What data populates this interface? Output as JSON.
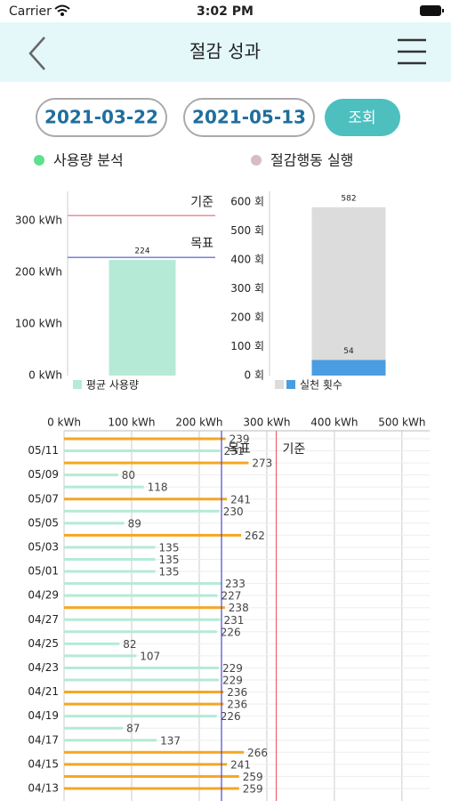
{
  "status_bar": {
    "carrier": "Carrier",
    "time": "3:02 PM"
  },
  "header": {
    "title": "절감 성과"
  },
  "search": {
    "start_date": "2021-03-22",
    "end_date": "2021-05-13",
    "button": "조회"
  },
  "tabs": [
    {
      "label": "사용량 분석",
      "color": "#5fe08f"
    },
    {
      "label": "절감행동 실행",
      "color": "#d6bcc6"
    }
  ],
  "chart_data": [
    {
      "type": "bar",
      "series": [
        {
          "name": "평균 사용량",
          "color": "#b5ead6",
          "values": [
            224
          ]
        }
      ],
      "ylim": [
        0,
        357
      ],
      "yticks": [
        {
          "value": 0,
          "label": "0 kWh"
        },
        {
          "value": 100,
          "label": "100 kWh"
        },
        {
          "value": 200,
          "label": "200 kWh"
        },
        {
          "value": 300,
          "label": "300 kWh"
        }
      ],
      "reference_lines": [
        {
          "label": "기준",
          "value": 310,
          "color": "#f08a9a"
        },
        {
          "label": "목표",
          "value": 229,
          "color": "#7a7fe0"
        }
      ]
    },
    {
      "type": "bar",
      "series": [
        {
          "color": "#dcdcdc",
          "values": [
            582
          ]
        },
        {
          "name": "실천 횟수",
          "color": "#4a9de0",
          "values": [
            54
          ]
        }
      ],
      "ylim": [
        0,
        637
      ],
      "yticks": [
        {
          "value": 0,
          "label": "0 회"
        },
        {
          "value": 100,
          "label": "100 회"
        },
        {
          "value": 200,
          "label": "200 회"
        },
        {
          "value": 300,
          "label": "300 회"
        },
        {
          "value": 400,
          "label": "400 회"
        },
        {
          "value": 500,
          "label": "500 회"
        },
        {
          "value": 600,
          "label": "600 회"
        }
      ]
    },
    {
      "type": "hbar",
      "categories": [
        null,
        "05/11",
        null,
        "05/09",
        null,
        "05/07",
        null,
        "05/05",
        null,
        "05/03",
        null,
        "05/01",
        null,
        "04/29",
        null,
        "04/27",
        null,
        "04/25",
        null,
        "04/23",
        null,
        "04/21",
        null,
        "04/19",
        null,
        "04/17",
        null,
        "04/15",
        null,
        "04/13"
      ],
      "values": [
        239,
        231,
        273,
        80,
        118,
        241,
        230,
        89,
        262,
        135,
        135,
        135,
        233,
        227,
        238,
        231,
        226,
        82,
        107,
        229,
        229,
        236,
        236,
        226,
        87,
        137,
        266,
        241,
        259,
        259
      ],
      "color": "#b5ead6",
      "over_color": "#f5a623",
      "xlim": [
        0,
        541
      ],
      "xticks": [
        {
          "value": 0,
          "label": "0 kWh"
        },
        {
          "value": 100,
          "label": "100 kWh"
        },
        {
          "value": 200,
          "label": "200 kWh"
        },
        {
          "value": 300,
          "label": "300 kWh"
        },
        {
          "value": 400,
          "label": "400 kWh"
        },
        {
          "value": 500,
          "label": "500 kWh"
        }
      ],
      "grid": true,
      "reference_lines": [
        {
          "label": "목표",
          "value": 233,
          "color": "#4a4ad0"
        },
        {
          "label": "기준",
          "value": 314,
          "color": "#f06070"
        }
      ]
    }
  ]
}
